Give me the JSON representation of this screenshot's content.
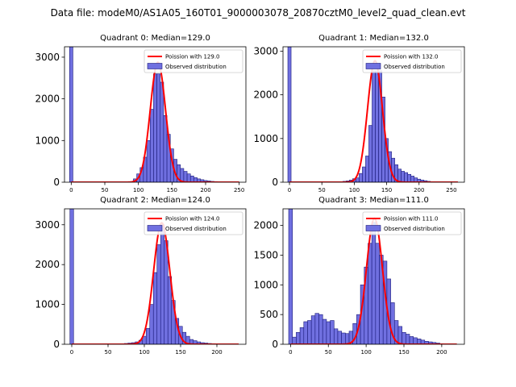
{
  "figure_title": "Data file: modeM0/AS1A05_160T01_9000003078_20870cztM0_level2_quad_clean.evt",
  "colors": {
    "bar_fill": "#7070e0",
    "bar_edge": "#1a1a7a",
    "line": "#ff0000"
  },
  "chart_data": [
    {
      "type": "bar",
      "title": "Quadrant 0: Median=129.0",
      "xlim": [
        -10,
        260
      ],
      "ylim": [
        0,
        3250
      ],
      "xticks": [
        0,
        50,
        100,
        150,
        200,
        250
      ],
      "yticks": [
        0,
        1000,
        2000,
        3000
      ],
      "bin_width": 5,
      "spike": {
        "x": 0,
        "height": 3250
      },
      "bins": [
        [
          95,
          80
        ],
        [
          100,
          200
        ],
        [
          105,
          350
        ],
        [
          110,
          600
        ],
        [
          115,
          1000
        ],
        [
          120,
          1750
        ],
        [
          125,
          2600
        ],
        [
          130,
          2600
        ],
        [
          135,
          2400
        ],
        [
          140,
          1600
        ],
        [
          145,
          1150
        ],
        [
          150,
          800
        ],
        [
          155,
          550
        ],
        [
          160,
          420
        ],
        [
          165,
          330
        ],
        [
          170,
          260
        ],
        [
          175,
          200
        ],
        [
          180,
          150
        ],
        [
          185,
          110
        ],
        [
          190,
          80
        ],
        [
          195,
          60
        ],
        [
          200,
          40
        ],
        [
          205,
          30
        ],
        [
          210,
          20
        ],
        [
          215,
          15
        ],
        [
          220,
          10
        ]
      ],
      "poisson_mean": 129.0,
      "poisson_peak": 2880,
      "poisson_range": [
        0,
        250
      ],
      "legend": {
        "line_label": "Poission with 129.0",
        "bar_label": "Observed distribution"
      }
    },
    {
      "type": "bar",
      "title": "Quadrant 1: Median=132.0",
      "xlim": [
        -10,
        270
      ],
      "ylim": [
        0,
        3100
      ],
      "xticks": [
        0,
        50,
        100,
        150,
        200,
        250
      ],
      "yticks": [
        0,
        1000,
        2000,
        3000
      ],
      "bin_width": 5,
      "spike": {
        "x": 0,
        "height": 3100
      },
      "bins": [
        [
          85,
          20
        ],
        [
          90,
          30
        ],
        [
          95,
          50
        ],
        [
          100,
          80
        ],
        [
          105,
          100
        ],
        [
          110,
          200
        ],
        [
          115,
          350
        ],
        [
          120,
          600
        ],
        [
          125,
          1300
        ],
        [
          130,
          2550
        ],
        [
          135,
          2550
        ],
        [
          140,
          2550
        ],
        [
          145,
          1950
        ],
        [
          150,
          1000
        ],
        [
          155,
          700
        ],
        [
          160,
          550
        ],
        [
          165,
          400
        ],
        [
          170,
          300
        ],
        [
          175,
          250
        ],
        [
          180,
          220
        ],
        [
          185,
          180
        ],
        [
          190,
          140
        ],
        [
          195,
          100
        ],
        [
          200,
          70
        ],
        [
          205,
          50
        ],
        [
          210,
          35
        ],
        [
          215,
          20
        ],
        [
          220,
          10
        ]
      ],
      "poisson_mean": 132.0,
      "poisson_peak": 2780,
      "poisson_range": [
        0,
        260
      ],
      "legend": {
        "line_label": "Poission with 132.0",
        "bar_label": "Observed distribution"
      }
    },
    {
      "type": "bar",
      "title": "Quadrant 2: Median=124.0",
      "xlim": [
        -10,
        240
      ],
      "ylim": [
        0,
        3400
      ],
      "xticks": [
        0,
        50,
        100,
        150,
        200
      ],
      "yticks": [
        0,
        1000,
        2000,
        3000
      ],
      "bin_width": 5,
      "spike": {
        "x": 0,
        "height": 3400
      },
      "bins": [
        [
          75,
          20
        ],
        [
          80,
          30
        ],
        [
          85,
          40
        ],
        [
          90,
          60
        ],
        [
          95,
          100
        ],
        [
          100,
          200
        ],
        [
          105,
          400
        ],
        [
          110,
          1000
        ],
        [
          115,
          1800
        ],
        [
          120,
          2500
        ],
        [
          125,
          3000
        ],
        [
          130,
          2600
        ],
        [
          135,
          1700
        ],
        [
          140,
          1100
        ],
        [
          145,
          650
        ],
        [
          150,
          450
        ],
        [
          155,
          300
        ],
        [
          160,
          200
        ],
        [
          165,
          120
        ],
        [
          170,
          90
        ],
        [
          175,
          60
        ],
        [
          180,
          40
        ],
        [
          185,
          30
        ],
        [
          190,
          20
        ],
        [
          195,
          15
        ],
        [
          200,
          10
        ]
      ],
      "poisson_mean": 124.0,
      "poisson_peak": 3050,
      "poisson_range": [
        0,
        230
      ],
      "legend": {
        "line_label": "Poission with 124.0",
        "bar_label": "Observed distribution"
      }
    },
    {
      "type": "bar",
      "title": "Quadrant 3: Median=111.0",
      "xlim": [
        -10,
        230
      ],
      "ylim": [
        0,
        2280
      ],
      "xticks": [
        0,
        50,
        100,
        150,
        200
      ],
      "yticks": [
        0,
        500,
        1000,
        1500,
        2000
      ],
      "bin_width": 5,
      "spike": {
        "x": 0,
        "height": 2280
      },
      "bins": [
        [
          5,
          120
        ],
        [
          10,
          200
        ],
        [
          15,
          280
        ],
        [
          20,
          380
        ],
        [
          25,
          400
        ],
        [
          30,
          480
        ],
        [
          35,
          520
        ],
        [
          40,
          500
        ],
        [
          45,
          420
        ],
        [
          50,
          380
        ],
        [
          55,
          400
        ],
        [
          60,
          260
        ],
        [
          65,
          220
        ],
        [
          70,
          190
        ],
        [
          75,
          180
        ],
        [
          80,
          220
        ],
        [
          85,
          350
        ],
        [
          90,
          500
        ],
        [
          95,
          1000
        ],
        [
          100,
          1300
        ],
        [
          105,
          1700
        ],
        [
          110,
          2050
        ],
        [
          115,
          1700
        ],
        [
          120,
          1500
        ],
        [
          125,
          1400
        ],
        [
          130,
          1100
        ],
        [
          135,
          700
        ],
        [
          140,
          400
        ],
        [
          145,
          300
        ],
        [
          150,
          200
        ],
        [
          155,
          170
        ],
        [
          160,
          130
        ],
        [
          165,
          110
        ],
        [
          170,
          90
        ],
        [
          175,
          70
        ],
        [
          180,
          50
        ],
        [
          185,
          40
        ],
        [
          190,
          30
        ],
        [
          195,
          20
        ],
        [
          200,
          10
        ]
      ],
      "poisson_mean": 111.0,
      "poisson_peak": 2120,
      "poisson_range": [
        0,
        220
      ],
      "legend": {
        "line_label": "Poission with 111.0",
        "bar_label": "Observed distribution"
      }
    }
  ]
}
